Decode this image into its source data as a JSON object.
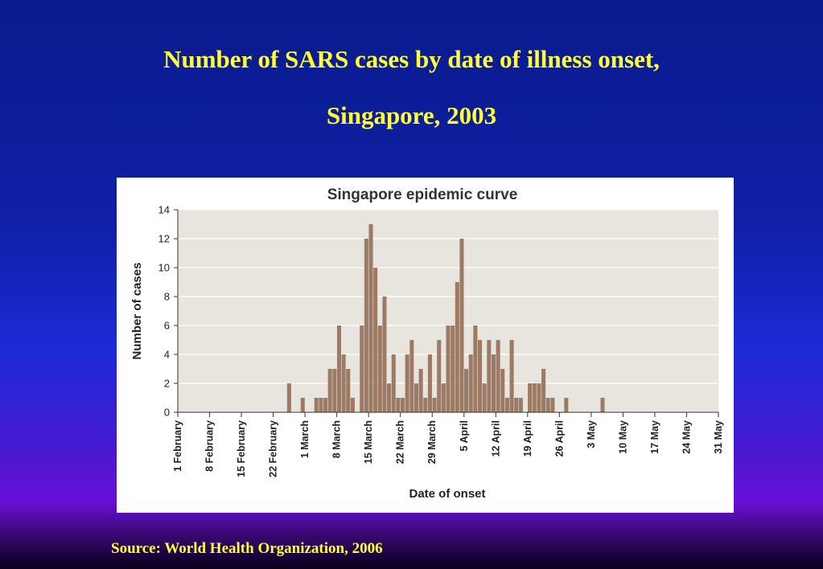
{
  "slide": {
    "title_line1": "Number of SARS cases by date of illness onset,",
    "title_line2": "Singapore, 2003",
    "source": "Source: World Health Organization, 2006",
    "title_color": "#ffff33"
  },
  "chart_data": {
    "type": "bar",
    "title": "Singapore epidemic curve",
    "xlabel": "Date of onset",
    "ylabel": "Number of cases",
    "ylim": [
      0,
      14
    ],
    "yticks": [
      0,
      2,
      4,
      6,
      8,
      10,
      12,
      14
    ],
    "xticks": [
      "1 February",
      "8 February",
      "15 February",
      "22 February",
      "1 March",
      "8 March",
      "15 March",
      "22 March",
      "29 March",
      "5 April",
      "12 April",
      "19 April",
      "26 April",
      "3 May",
      "10 May",
      "17 May",
      "24 May",
      "31 May"
    ],
    "grid": true,
    "bar_color": "#9c7a63",
    "plot_background": "#e8e4de",
    "x": [
      "25 February",
      "28 February",
      "3 March",
      "4 March",
      "5 March",
      "6 March",
      "7 March",
      "8 March",
      "9 March",
      "10 March",
      "11 March",
      "13 March",
      "14 March",
      "15 March",
      "16 March",
      "17 March",
      "18 March",
      "19 March",
      "20 March",
      "21 March",
      "22 March",
      "23 March",
      "24 March",
      "25 March",
      "26 March",
      "27 March",
      "28 March",
      "29 March",
      "30 March",
      "31 March",
      "1 April",
      "2 April",
      "3 April",
      "4 April",
      "5 April",
      "6 April",
      "7 April",
      "8 April",
      "9 April",
      "10 April",
      "11 April",
      "12 April",
      "13 April",
      "14 April",
      "15 April",
      "16 April",
      "17 April",
      "19 April",
      "20 April",
      "21 April",
      "22 April",
      "23 April",
      "24 April",
      "27 April",
      "5 May"
    ],
    "values": [
      2,
      1,
      1,
      1,
      1,
      3,
      3,
      6,
      4,
      3,
      1,
      6,
      12,
      13,
      10,
      6,
      8,
      2,
      4,
      1,
      1,
      4,
      5,
      2,
      3,
      1,
      4,
      1,
      5,
      2,
      6,
      6,
      9,
      12,
      3,
      4,
      6,
      5,
      2,
      5,
      4,
      5,
      3,
      1,
      5,
      1,
      1,
      2,
      2,
      2,
      3,
      1,
      1,
      1,
      1
    ]
  }
}
